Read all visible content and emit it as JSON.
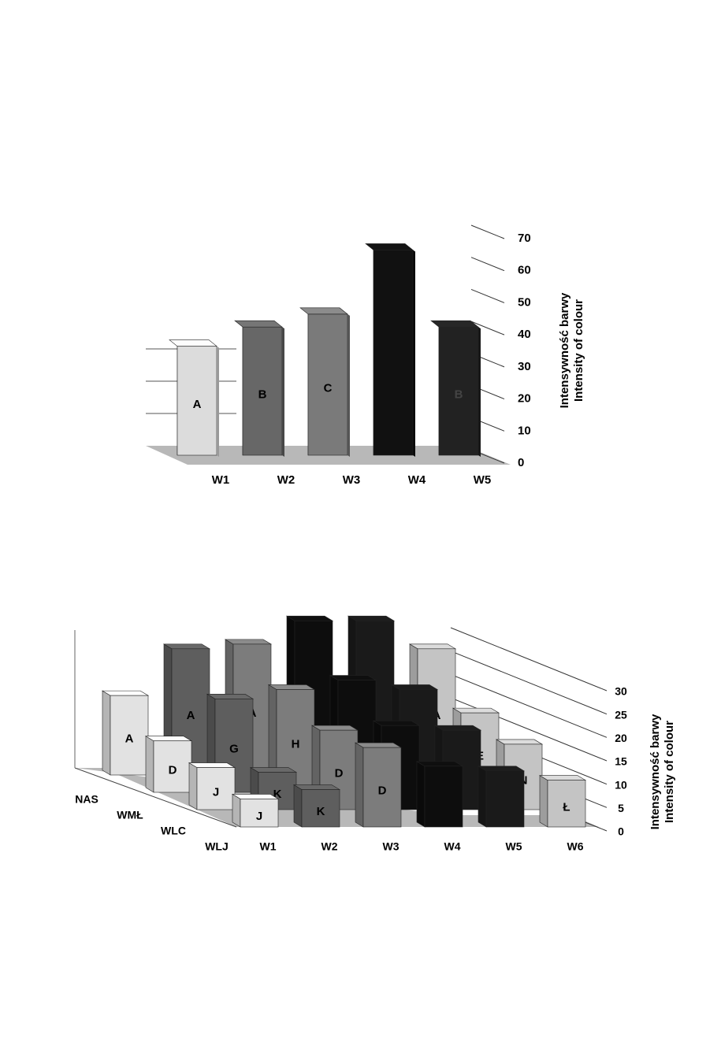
{
  "chart_data": [
    {
      "type": "bar3d",
      "categories": [
        "W1",
        "W2",
        "W3",
        "W4",
        "W5"
      ],
      "values": [
        34,
        40,
        44,
        64,
        40
      ],
      "bar_labels": [
        "A",
        "B",
        "C",
        null,
        "B"
      ],
      "colors": [
        "#dcdcdc",
        "#676767",
        "#7a7a7a",
        "#111111",
        "#222222"
      ],
      "ylim": [
        0,
        70
      ],
      "yticks": [
        0,
        10,
        20,
        30,
        40,
        50,
        60,
        70
      ],
      "ylabel": [
        "Intensywność barwy",
        "Intensity of colour"
      ]
    },
    {
      "type": "bar3d_grouped",
      "categories": [
        "W1",
        "W2",
        "W3",
        "W4",
        "W5",
        "W6"
      ],
      "series": [
        {
          "name": "NAS",
          "values": [
            17,
            27,
            28,
            33,
            33,
            27
          ],
          "bar_labels": [
            "A",
            "A",
            "A",
            null,
            null,
            "A"
          ]
        },
        {
          "name": "WMŁ",
          "values": [
            11,
            20,
            22,
            24,
            22,
            17
          ],
          "bar_labels": [
            "D",
            "G",
            "H",
            null,
            null,
            "E"
          ]
        },
        {
          "name": "WLC",
          "values": [
            9,
            8,
            17,
            18,
            17,
            14
          ],
          "bar_labels": [
            "J",
            "K",
            "D",
            null,
            null,
            "N"
          ]
        },
        {
          "name": "WLJ",
          "values": [
            6,
            8,
            17,
            13,
            12,
            10
          ],
          "bar_labels": [
            "J",
            "K",
            "D",
            null,
            null,
            "Ł"
          ]
        }
      ],
      "colors": [
        "#e2e2e2",
        "#5e5e5e",
        "#7c7c7c",
        "#0d0d0d",
        "#1a1a1a",
        "#c4c4c4"
      ],
      "ylim": [
        0,
        30
      ],
      "yticks": [
        0,
        5,
        10,
        15,
        20,
        25,
        30
      ],
      "ylabel": [
        "Intensywność barwy",
        "Intensity of colour"
      ]
    }
  ]
}
